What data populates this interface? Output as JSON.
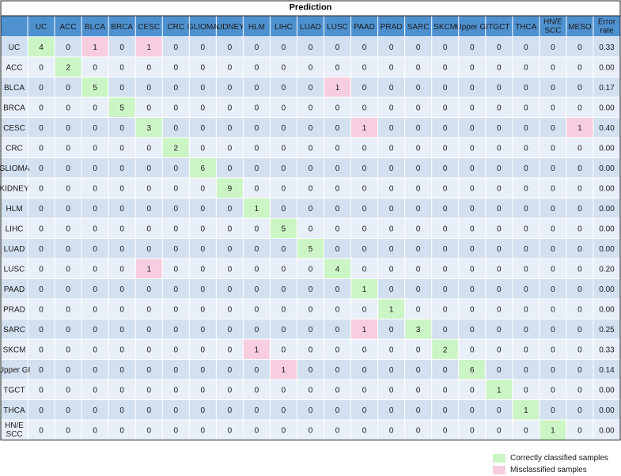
{
  "chart_data": {
    "type": "table",
    "title": "Prediction",
    "columns": [
      "UC",
      "ACC",
      "BLCA",
      "BRCA",
      "CESC",
      "CRC",
      "GLIOMA",
      "KIDNEY",
      "HLM",
      "LIHC",
      "LUAD",
      "LUSC",
      "PAAD",
      "PRAD",
      "SARC",
      "SKCM",
      "Upper GI",
      "TGCT",
      "THCA",
      "HN/E SCC",
      "MESO"
    ],
    "error_rate_label": "Error rate",
    "rows": [
      {
        "label": "UC",
        "values": [
          4,
          0,
          1,
          0,
          1,
          0,
          0,
          0,
          0,
          0,
          0,
          0,
          0,
          0,
          0,
          0,
          0,
          0,
          0,
          0,
          0
        ],
        "error_rate": "0.33"
      },
      {
        "label": "ACC",
        "values": [
          0,
          2,
          0,
          0,
          0,
          0,
          0,
          0,
          0,
          0,
          0,
          0,
          0,
          0,
          0,
          0,
          0,
          0,
          0,
          0,
          0
        ],
        "error_rate": "0.00"
      },
      {
        "label": "BLCA",
        "values": [
          0,
          0,
          5,
          0,
          0,
          0,
          0,
          0,
          0,
          0,
          0,
          1,
          0,
          0,
          0,
          0,
          0,
          0,
          0,
          0,
          0
        ],
        "error_rate": "0.17"
      },
      {
        "label": "BRCA",
        "values": [
          0,
          0,
          0,
          5,
          0,
          0,
          0,
          0,
          0,
          0,
          0,
          0,
          0,
          0,
          0,
          0,
          0,
          0,
          0,
          0,
          0
        ],
        "error_rate": "0.00"
      },
      {
        "label": "CESC",
        "values": [
          0,
          0,
          0,
          0,
          3,
          0,
          0,
          0,
          0,
          0,
          0,
          0,
          1,
          0,
          0,
          0,
          0,
          0,
          0,
          0,
          1
        ],
        "error_rate": "0.40"
      },
      {
        "label": "CRC",
        "values": [
          0,
          0,
          0,
          0,
          0,
          2,
          0,
          0,
          0,
          0,
          0,
          0,
          0,
          0,
          0,
          0,
          0,
          0,
          0,
          0,
          0
        ],
        "error_rate": "0.00"
      },
      {
        "label": "GLIOMA",
        "values": [
          0,
          0,
          0,
          0,
          0,
          0,
          6,
          0,
          0,
          0,
          0,
          0,
          0,
          0,
          0,
          0,
          0,
          0,
          0,
          0,
          0
        ],
        "error_rate": "0.00"
      },
      {
        "label": "KIDNEY",
        "values": [
          0,
          0,
          0,
          0,
          0,
          0,
          0,
          9,
          0,
          0,
          0,
          0,
          0,
          0,
          0,
          0,
          0,
          0,
          0,
          0,
          0
        ],
        "error_rate": "0.00"
      },
      {
        "label": "HLM",
        "values": [
          0,
          0,
          0,
          0,
          0,
          0,
          0,
          0,
          1,
          0,
          0,
          0,
          0,
          0,
          0,
          0,
          0,
          0,
          0,
          0,
          0
        ],
        "error_rate": "0.00"
      },
      {
        "label": "LIHC",
        "values": [
          0,
          0,
          0,
          0,
          0,
          0,
          0,
          0,
          0,
          5,
          0,
          0,
          0,
          0,
          0,
          0,
          0,
          0,
          0,
          0,
          0
        ],
        "error_rate": "0.00"
      },
      {
        "label": "LUAD",
        "values": [
          0,
          0,
          0,
          0,
          0,
          0,
          0,
          0,
          0,
          0,
          5,
          0,
          0,
          0,
          0,
          0,
          0,
          0,
          0,
          0,
          0
        ],
        "error_rate": "0.00"
      },
      {
        "label": "LUSC",
        "values": [
          0,
          0,
          0,
          0,
          1,
          0,
          0,
          0,
          0,
          0,
          0,
          4,
          0,
          0,
          0,
          0,
          0,
          0,
          0,
          0,
          0
        ],
        "error_rate": "0.20"
      },
      {
        "label": "PAAD",
        "values": [
          0,
          0,
          0,
          0,
          0,
          0,
          0,
          0,
          0,
          0,
          0,
          0,
          1,
          0,
          0,
          0,
          0,
          0,
          0,
          0,
          0
        ],
        "error_rate": "0.00"
      },
      {
        "label": "PRAD",
        "values": [
          0,
          0,
          0,
          0,
          0,
          0,
          0,
          0,
          0,
          0,
          0,
          0,
          0,
          1,
          0,
          0,
          0,
          0,
          0,
          0,
          0
        ],
        "error_rate": "0.00"
      },
      {
        "label": "SARC",
        "values": [
          0,
          0,
          0,
          0,
          0,
          0,
          0,
          0,
          0,
          0,
          0,
          0,
          1,
          0,
          3,
          0,
          0,
          0,
          0,
          0,
          0
        ],
        "error_rate": "0.25"
      },
      {
        "label": "SKCM",
        "values": [
          0,
          0,
          0,
          0,
          0,
          0,
          0,
          0,
          1,
          0,
          0,
          0,
          0,
          0,
          0,
          2,
          0,
          0,
          0,
          0,
          0
        ],
        "error_rate": "0.33"
      },
      {
        "label": "Upper GI",
        "values": [
          0,
          0,
          0,
          0,
          0,
          0,
          0,
          0,
          0,
          1,
          0,
          0,
          0,
          0,
          0,
          0,
          6,
          0,
          0,
          0,
          0
        ],
        "error_rate": "0.14"
      },
      {
        "label": "TGCT",
        "values": [
          0,
          0,
          0,
          0,
          0,
          0,
          0,
          0,
          0,
          0,
          0,
          0,
          0,
          0,
          0,
          0,
          0,
          1,
          0,
          0,
          0
        ],
        "error_rate": "0.00"
      },
      {
        "label": "THCA",
        "values": [
          0,
          0,
          0,
          0,
          0,
          0,
          0,
          0,
          0,
          0,
          0,
          0,
          0,
          0,
          0,
          0,
          0,
          0,
          1,
          0,
          0
        ],
        "error_rate": "0.00"
      },
      {
        "label": "HN/E SCC",
        "values": [
          0,
          0,
          0,
          0,
          0,
          0,
          0,
          0,
          0,
          0,
          0,
          0,
          0,
          0,
          0,
          0,
          0,
          0,
          0,
          1,
          0
        ],
        "error_rate": "0.00"
      }
    ],
    "legend": [
      {
        "key": "correct",
        "label": "Correctly classified samples",
        "color": "#ccf5c5"
      },
      {
        "key": "misclassified",
        "label": "Misclassified samples",
        "color": "#f8cde0"
      }
    ],
    "colors": {
      "header": "#4f91cf",
      "row_dark": "#d3e0f0",
      "row_light": "#e9eff8",
      "correct": "#ccf5c5",
      "misclassified": "#f8cde0"
    }
  }
}
